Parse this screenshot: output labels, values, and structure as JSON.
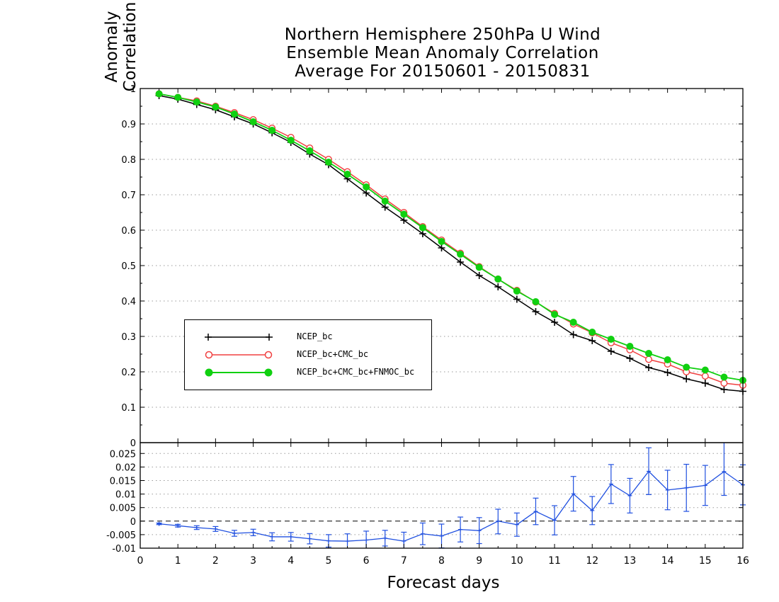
{
  "chart_data": [
    {
      "type": "line",
      "title": "Northern Hemisphere 250hPa U Wind\nEnsemble Mean Anomaly Correlation\nAverage For 20150601 - 20150831",
      "title_lines": [
        "Northern Hemisphere 250hPa U Wind",
        "Ensemble Mean Anomaly Correlation",
        "Average For 20150601 - 20150831"
      ],
      "xlabel": "Forecast days",
      "ylabel": "Anomaly Correlation",
      "xlim": [
        0,
        16
      ],
      "ylim": [
        0,
        1
      ],
      "xticks": [
        "0",
        "1",
        "2",
        "3",
        "4",
        "5",
        "6",
        "7",
        "8",
        "9",
        "10",
        "11",
        "12",
        "13",
        "14",
        "15",
        "16"
      ],
      "yticks": [
        "0",
        "0.1",
        "0.2",
        "0.3",
        "0.4",
        "0.5",
        "0.6",
        "0.7",
        "0.8",
        "0.9",
        "1"
      ],
      "grid": true,
      "legend_position": "lower-left",
      "x": [
        0.5,
        1,
        1.5,
        2,
        2.5,
        3,
        3.5,
        4,
        4.5,
        5,
        5.5,
        6,
        6.5,
        7,
        7.5,
        8,
        8.5,
        9,
        9.5,
        10,
        10.5,
        11,
        11.5,
        12,
        12.5,
        13,
        13.5,
        14,
        14.5,
        15,
        15.5,
        16
      ],
      "series": [
        {
          "name": "NCEP_bc",
          "color": "#000000",
          "marker": "plus",
          "values": [
            0.98,
            0.97,
            0.955,
            0.94,
            0.92,
            0.9,
            0.875,
            0.848,
            0.815,
            0.785,
            0.745,
            0.705,
            0.665,
            0.628,
            0.59,
            0.55,
            0.51,
            0.472,
            0.44,
            0.405,
            0.37,
            0.34,
            0.305,
            0.288,
            0.258,
            0.238,
            0.212,
            0.198,
            0.18,
            0.168,
            0.15,
            0.145
          ]
        },
        {
          "name": "NCEP_bc+CMC_bc",
          "color": "#f04040",
          "marker": "open-circle",
          "values": [
            0.985,
            0.975,
            0.965,
            0.95,
            0.932,
            0.912,
            0.888,
            0.862,
            0.832,
            0.8,
            0.765,
            0.728,
            0.688,
            0.65,
            0.61,
            0.572,
            0.535,
            0.497,
            0.462,
            0.43,
            0.397,
            0.365,
            0.335,
            0.31,
            0.282,
            0.262,
            0.235,
            0.222,
            0.2,
            0.188,
            0.168,
            0.162
          ]
        },
        {
          "name": "NCEP_bc+CMC_bc+FNMOC_bc",
          "color": "#10d010",
          "marker": "filled-circle",
          "values": [
            0.985,
            0.975,
            0.962,
            0.948,
            0.928,
            0.906,
            0.882,
            0.854,
            0.824,
            0.792,
            0.758,
            0.722,
            0.682,
            0.645,
            0.607,
            0.568,
            0.532,
            0.495,
            0.462,
            0.428,
            0.398,
            0.362,
            0.34,
            0.312,
            0.292,
            0.272,
            0.252,
            0.234,
            0.213,
            0.205,
            0.185,
            0.176
          ]
        }
      ]
    },
    {
      "type": "line",
      "subtype": "difference-with-error-bars",
      "xlim": [
        0,
        16
      ],
      "ylim": [
        -0.01,
        0.029
      ],
      "yticks": [
        "-0.01",
        "-0.005",
        "0",
        "0.005",
        "0.01",
        "0.015",
        "0.02",
        "0.025"
      ],
      "grid": true,
      "color": "#2050e0",
      "x": [
        0.5,
        1,
        1.5,
        2,
        2.5,
        3,
        3.5,
        4,
        4.5,
        5,
        5.5,
        6,
        6.5,
        7,
        7.5,
        8,
        8.5,
        9,
        9.5,
        10,
        10.5,
        11,
        11.5,
        12,
        12.5,
        13,
        13.5,
        14,
        14.5,
        15,
        15.5,
        16
      ],
      "values": [
        -0.001,
        -0.0017,
        -0.0024,
        -0.0029,
        -0.0045,
        -0.0042,
        -0.0058,
        -0.0058,
        -0.0065,
        -0.0073,
        -0.0074,
        -0.007,
        -0.0063,
        -0.0074,
        -0.0047,
        -0.0055,
        -0.0031,
        -0.0035,
        0.0,
        -0.0013,
        0.0036,
        0.0003,
        0.0101,
        0.0039,
        0.0137,
        0.0094,
        0.0184,
        0.0115,
        0.0123,
        0.0132,
        0.0183,
        0.0134
      ],
      "error_lower": [
        -0.0013,
        -0.0022,
        -0.0031,
        -0.0038,
        -0.0056,
        -0.0054,
        -0.0073,
        -0.0074,
        -0.0084,
        -0.0096,
        -0.0101,
        -0.0103,
        -0.0092,
        -0.0107,
        -0.0087,
        -0.0099,
        -0.0077,
        -0.0083,
        -0.0047,
        -0.0056,
        -0.0013,
        -0.0051,
        0.0037,
        -0.0013,
        0.0065,
        0.003,
        0.0098,
        0.0042,
        0.0036,
        0.0058,
        0.0095,
        0.006
      ],
      "error_upper": [
        -0.0007,
        -0.0012,
        -0.0017,
        -0.002,
        -0.0034,
        -0.003,
        -0.0043,
        -0.0042,
        -0.0046,
        -0.005,
        -0.0047,
        -0.0037,
        -0.0034,
        -0.0041,
        -0.0007,
        -0.0011,
        0.0015,
        0.0013,
        0.0044,
        0.003,
        0.0085,
        0.0057,
        0.0165,
        0.0091,
        0.0209,
        0.0158,
        0.0271,
        0.0188,
        0.021,
        0.0206,
        0.0291,
        0.0208
      ]
    }
  ]
}
